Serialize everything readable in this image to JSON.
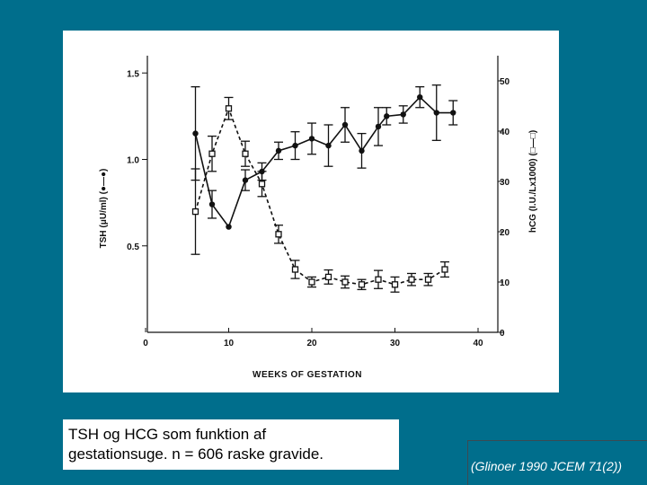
{
  "caption": {
    "line1": "TSH og HCG som funktion af",
    "line2": "gestationsuge. n = 606 raske gravide."
  },
  "citation": "(Glinoer 1990 JCEM 71(2))",
  "colors": {
    "background": "#006e8c",
    "panel": "#ffffff",
    "ink": "#111111"
  },
  "chart_data": {
    "type": "line",
    "title": "",
    "xlabel": "WEEKS OF GESTATION",
    "ylabel_left": "TSH (μU/ml) (●—●)",
    "ylabel_right": "hCG (I.U./Lx1000) (□—□)",
    "xlim": [
      0,
      40
    ],
    "ylim_left": [
      0,
      1.6
    ],
    "ylim_right": [
      0,
      55
    ],
    "x_ticks": [
      {
        "value": 0,
        "label": "0"
      },
      {
        "value": 10,
        "label": "10"
      },
      {
        "value": 20,
        "label": "20"
      },
      {
        "value": 30,
        "label": "30"
      },
      {
        "value": 40,
        "label": "40"
      }
    ],
    "y_left_ticks": [
      {
        "value": 0.5,
        "label": "0.5"
      },
      {
        "value": 1.0,
        "label": "1.0"
      },
      {
        "value": 1.5,
        "label": "1.5"
      }
    ],
    "y_right_ticks": [
      {
        "value": 0,
        "label": "0"
      },
      {
        "value": 10,
        "label": "10"
      },
      {
        "value": 20,
        "label": "20"
      },
      {
        "value": 30,
        "label": "30"
      },
      {
        "value": 40,
        "label": "40"
      },
      {
        "value": 50,
        "label": "50"
      }
    ],
    "grid": false,
    "series": [
      {
        "key": "tsh",
        "axis": "left",
        "marker": "filled-circle",
        "line": "solid",
        "points": [
          {
            "x": 6,
            "y": 1.15,
            "err": 0.27
          },
          {
            "x": 8,
            "y": 0.74,
            "err": 0.08
          },
          {
            "x": 10,
            "y": 0.61,
            "err": 0.0
          },
          {
            "x": 12,
            "y": 0.88,
            "err": 0.06
          },
          {
            "x": 14,
            "y": 0.93,
            "err": 0.05
          },
          {
            "x": 16,
            "y": 1.05,
            "err": 0.05
          },
          {
            "x": 18,
            "y": 1.08,
            "err": 0.08
          },
          {
            "x": 20,
            "y": 1.12,
            "err": 0.09
          },
          {
            "x": 22,
            "y": 1.08,
            "err": 0.12
          },
          {
            "x": 24,
            "y": 1.2,
            "err": 0.1
          },
          {
            "x": 26,
            "y": 1.05,
            "err": 0.1
          },
          {
            "x": 28,
            "y": 1.19,
            "err": 0.11
          },
          {
            "x": 29,
            "y": 1.25,
            "err": 0.05
          },
          {
            "x": 31,
            "y": 1.26,
            "err": 0.05
          },
          {
            "x": 33,
            "y": 1.36,
            "err": 0.06
          },
          {
            "x": 35,
            "y": 1.27,
            "err": 0.16
          },
          {
            "x": 37,
            "y": 1.27,
            "err": 0.07
          }
        ]
      },
      {
        "key": "hcg",
        "axis": "right",
        "marker": "open-square",
        "line": "dashed",
        "points": [
          {
            "x": 6,
            "y": 24,
            "err": 8.5
          },
          {
            "x": 8,
            "y": 35.5,
            "err": 3.5
          },
          {
            "x": 10,
            "y": 44.5,
            "err": 2.2
          },
          {
            "x": 12,
            "y": 35.5,
            "err": 2.5
          },
          {
            "x": 14,
            "y": 29.5,
            "err": 2.5
          },
          {
            "x": 16,
            "y": 19.5,
            "err": 1.8
          },
          {
            "x": 18,
            "y": 12.5,
            "err": 1.8
          },
          {
            "x": 20,
            "y": 10.0,
            "err": 1.0
          },
          {
            "x": 22,
            "y": 11.0,
            "err": 1.4
          },
          {
            "x": 24,
            "y": 10.0,
            "err": 1.2
          },
          {
            "x": 26,
            "y": 9.5,
            "err": 1.0
          },
          {
            "x": 28,
            "y": 10.5,
            "err": 1.8
          },
          {
            "x": 30,
            "y": 9.5,
            "err": 1.5
          },
          {
            "x": 32,
            "y": 10.5,
            "err": 1.2
          },
          {
            "x": 34,
            "y": 10.5,
            "err": 1.2
          },
          {
            "x": 36,
            "y": 12.5,
            "err": 1.5
          }
        ]
      }
    ]
  }
}
